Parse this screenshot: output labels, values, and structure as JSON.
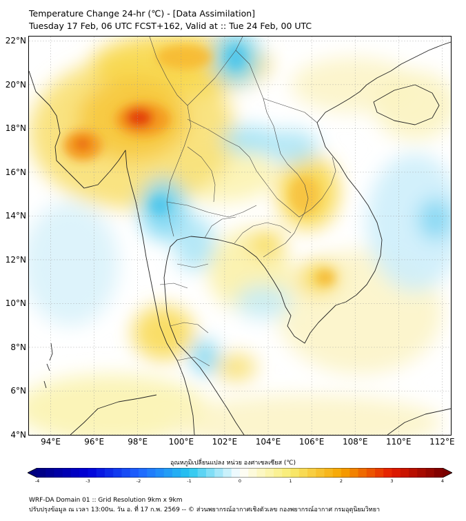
{
  "header": {
    "title_line1": "Temperature Change 24-hr (℃) - [Data Assimilation]",
    "title_line2": "Tuesday 17 Feb, 06 UTC FCST+162, Valid at :: Tue 24 Feb, 00 UTC"
  },
  "map": {
    "lat_labels": [
      "22°N",
      "20°N",
      "18°N",
      "16°N",
      "14°N",
      "12°N",
      "10°N",
      "8°N",
      "6°N",
      "4°N"
    ],
    "lon_labels": [
      "94°E",
      "96°E",
      "98°E",
      "100°E",
      "102°E",
      "104°E",
      "106°E",
      "108°E",
      "110°E",
      "112°E"
    ],
    "extent": {
      "lon_min": 93.0,
      "lon_max": 112.4,
      "lat_min": 4.0,
      "lat_max": 22.2
    },
    "grid": true
  },
  "colorbar": {
    "title": "อุณหภูมิเปลี่ยนแปลง หน่วย องศาเซลเซียส (℃)",
    "min": -4,
    "max": 4,
    "ticks": [
      "-4",
      "-3",
      "-2",
      "-1",
      "0",
      "1",
      "2",
      "3",
      "4"
    ],
    "colors": [
      "#000080",
      "#0000d8",
      "#1e64ff",
      "#26c6f0",
      "#ffffff",
      "#f8ec70",
      "#f7a400",
      "#e41a00",
      "#7a0000"
    ]
  },
  "footer": {
    "line1": "WRF-DA Domain 01 :: Grid Resolution 9km x 9km",
    "line2": "ปรับปรุงข้อมูล ณ เวลา 13:00น. วัน อ. ที่ 17 ก.พ. 2569 -- © ส่วนพยากรณ์อากาศเชิงตัวเลข กองพยากรณ์อากาศ กรมอุตุนิยมวิทยา"
  }
}
